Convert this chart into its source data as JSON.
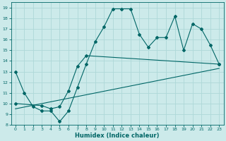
{
  "title": "",
  "xlabel": "Humidex (Indice chaleur)",
  "bg_color": "#cceaea",
  "grid_color": "#add8d8",
  "line_color": "#006666",
  "xlim": [
    -0.5,
    23.5
  ],
  "ylim": [
    8,
    19.5
  ],
  "xticks": [
    0,
    1,
    2,
    3,
    4,
    5,
    6,
    7,
    8,
    9,
    10,
    11,
    12,
    13,
    14,
    15,
    16,
    17,
    18,
    19,
    20,
    21,
    22,
    23
  ],
  "yticks": [
    8,
    9,
    10,
    11,
    12,
    13,
    14,
    15,
    16,
    17,
    18,
    19
  ],
  "series1_x": [
    0,
    1,
    2,
    3,
    4,
    5,
    6,
    7,
    8,
    9,
    10,
    11,
    12,
    13,
    14,
    15,
    16,
    17,
    18,
    19,
    20,
    21,
    22,
    23
  ],
  "series1_y": [
    13,
    11,
    9.7,
    9.3,
    9.3,
    8.3,
    9.3,
    11.5,
    13.7,
    15.8,
    17.2,
    18.9,
    18.9,
    18.9,
    16.5,
    15.3,
    16.2,
    16.2,
    18.2,
    15.0,
    17.5,
    17.0,
    15.5,
    13.7
  ],
  "series2_x": [
    0,
    3,
    4,
    5,
    6,
    7,
    8,
    23
  ],
  "series2_y": [
    10.0,
    9.8,
    9.5,
    9.7,
    11.2,
    13.5,
    14.5,
    13.7
  ],
  "series3_x": [
    0,
    23
  ],
  "series3_y": [
    9.5,
    13.3
  ]
}
